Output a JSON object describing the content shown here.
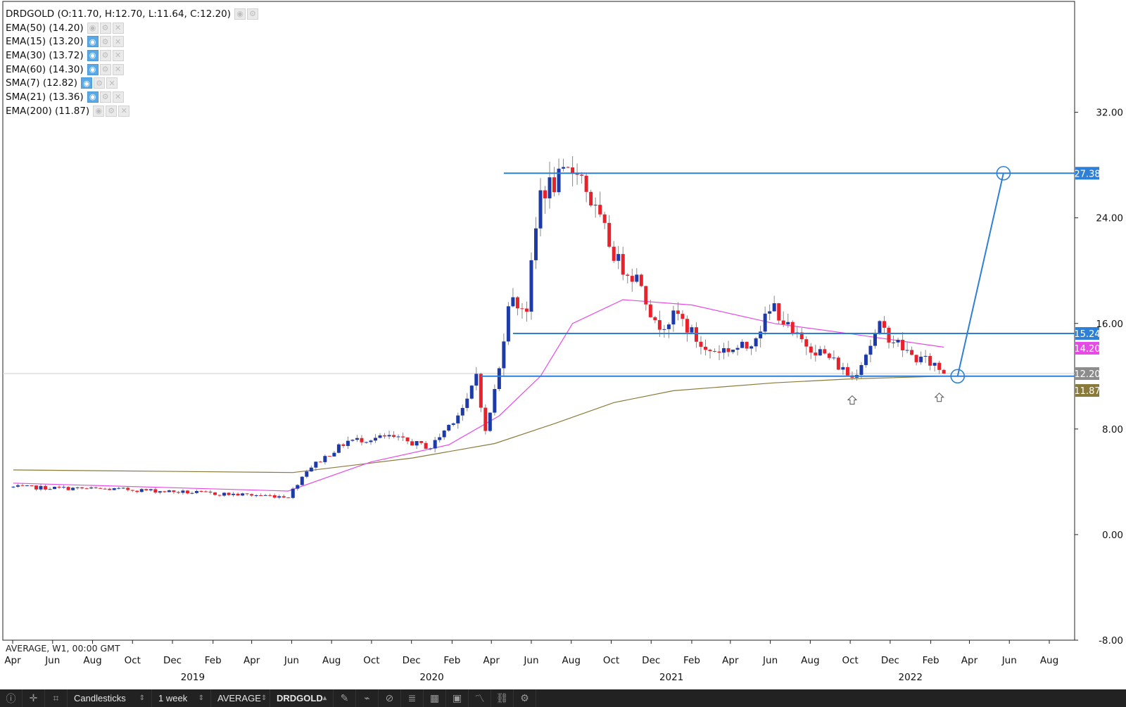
{
  "legend": {
    "ohlc": "DRDGOLD (O:11.70, H:12.70, L:11.64, C:12.20)",
    "indicators": [
      {
        "label": "EMA(50) (14.20)",
        "visible": false,
        "color": "#e64be6"
      },
      {
        "label": "EMA(15) (13.20)",
        "visible": true,
        "color": "#4aa3df"
      },
      {
        "label": "EMA(30) (13.72)",
        "visible": true,
        "color": "#4aa3df"
      },
      {
        "label": "EMA(60) (14.30)",
        "visible": true,
        "color": "#4aa3df"
      },
      {
        "label": "SMA(7) (12.82)",
        "visible": true,
        "color": "#4aa3df"
      },
      {
        "label": "SMA(21) (13.36)",
        "visible": true,
        "color": "#4aa3df"
      },
      {
        "label": "EMA(200) (11.87)",
        "visible": false,
        "color": "#8a7a3a"
      }
    ]
  },
  "footnote": "AVERAGE, W1, 00:00 GMT",
  "toolbar": {
    "chart_type": "Candlesticks",
    "interval": "1 week",
    "price_type": "AVERAGE",
    "symbol": "DRDGOLD",
    "icons": [
      "info-icon",
      "crosshair-icon",
      "crop-icon",
      "pencil-icon",
      "brush-icon",
      "hide-icon",
      "indicators-icon",
      "layout-icon",
      "portfolio-icon",
      "line-chart-icon",
      "link-icon",
      "settings-icon"
    ]
  },
  "chart_data": {
    "type": "candlestick",
    "symbol": "DRDGOLD",
    "interval": "1 week",
    "y_ticks": [
      "32.00",
      "24.00",
      "16.00",
      "8.00",
      "0.00",
      "-8.00"
    ],
    "ylim": [
      -8,
      40.4
    ],
    "x_month_ticks": [
      {
        "label": "Apr",
        "date": "2018-04-01"
      },
      {
        "label": "Jun",
        "date": "2018-06-01"
      },
      {
        "label": "Aug",
        "date": "2018-08-01"
      },
      {
        "label": "Oct",
        "date": "2018-10-01"
      },
      {
        "label": "Dec",
        "date": "2018-12-01"
      },
      {
        "label": "Feb",
        "date": "2019-02-01"
      },
      {
        "label": "Apr",
        "date": "2019-04-01"
      },
      {
        "label": "Jun",
        "date": "2019-06-01"
      },
      {
        "label": "Aug",
        "date": "2019-08-01"
      },
      {
        "label": "Oct",
        "date": "2019-10-01"
      },
      {
        "label": "Dec",
        "date": "2019-12-01"
      },
      {
        "label": "Feb",
        "date": "2020-02-01"
      },
      {
        "label": "Apr",
        "date": "2020-04-01"
      },
      {
        "label": "Jun",
        "date": "2020-06-01"
      },
      {
        "label": "Aug",
        "date": "2020-08-01"
      },
      {
        "label": "Oct",
        "date": "2020-10-01"
      },
      {
        "label": "Dec",
        "date": "2020-12-01"
      },
      {
        "label": "Feb",
        "date": "2021-02-01"
      },
      {
        "label": "Apr",
        "date": "2021-04-01"
      },
      {
        "label": "Jun",
        "date": "2021-06-01"
      },
      {
        "label": "Aug",
        "date": "2021-08-01"
      },
      {
        "label": "Oct",
        "date": "2021-10-01"
      },
      {
        "label": "Dec",
        "date": "2021-12-01"
      },
      {
        "label": "Feb",
        "date": "2022-02-01"
      },
      {
        "label": "Apr",
        "date": "2022-04-01"
      },
      {
        "label": "Jun",
        "date": "2022-06-01"
      },
      {
        "label": "Aug",
        "date": "2022-08-01"
      }
    ],
    "x_year_ticks": [
      {
        "label": "2019",
        "date": "2019-01-01"
      },
      {
        "label": "2020",
        "date": "2020-01-01"
      },
      {
        "label": "2021",
        "date": "2021-01-01"
      },
      {
        "label": "2022",
        "date": "2022-01-01"
      }
    ],
    "price_badges": [
      {
        "value": 27.38,
        "label": "27.38",
        "color": "#2e7fd6"
      },
      {
        "value": 15.24,
        "label": "15.24",
        "color": "#2e7fd6"
      },
      {
        "value": 14.2,
        "label": "14.20",
        "color": "#e64be6"
      },
      {
        "value": 12.2,
        "label": "12.20",
        "color": "#8c8c8c"
      },
      {
        "value": 11.87,
        "label": "11.87",
        "color": "#8a7a3a"
      }
    ],
    "horizontal_lines": [
      {
        "value": 27.38,
        "from": "2020-04-20",
        "color": "#2e7fd6"
      },
      {
        "value": 15.24,
        "from": "2020-05-04",
        "color": "#2e7fd6"
      },
      {
        "value": 12.0,
        "from": "2020-03-16",
        "color": "#2e7fd6"
      }
    ],
    "projection": {
      "start": {
        "date": "2022-03-14",
        "value": 12.0
      },
      "end": {
        "date": "2022-05-23",
        "value": 27.38
      },
      "color": "#2e7fd6"
    },
    "support_arrows": [
      {
        "date": "2021-10-04",
        "value": 10.2
      },
      {
        "date": "2022-02-14",
        "value": 10.4
      }
    ],
    "current_price": 12.2,
    "colors": {
      "up": "#1c3aa8",
      "down": "#e8212b",
      "wick": "#888888",
      "ema50": "#e64be6",
      "ema200": "#8a7a3a",
      "level": "#2e7fd6"
    },
    "key_points": [
      {
        "date": "2018-04-02",
        "value": 3.6
      },
      {
        "date": "2018-10-01",
        "value": 3.4
      },
      {
        "date": "2019-02-04",
        "value": 3.1
      },
      {
        "date": "2019-05-27",
        "value": 2.9
      },
      {
        "date": "2019-06-24",
        "value": 4.9
      },
      {
        "date": "2019-08-26",
        "value": 7.1
      },
      {
        "date": "2019-10-28",
        "value": 7.4
      },
      {
        "date": "2019-12-30",
        "value": 6.6
      },
      {
        "date": "2020-02-24",
        "value": 10.0
      },
      {
        "date": "2020-03-09",
        "value": 12.2
      },
      {
        "date": "2020-03-23",
        "value": 7.7
      },
      {
        "date": "2020-04-13",
        "value": 12.5
      },
      {
        "date": "2020-04-27",
        "value": 17.8
      },
      {
        "date": "2020-05-25",
        "value": 17.2
      },
      {
        "date": "2020-06-15",
        "value": 26.0
      },
      {
        "date": "2020-07-20",
        "value": 27.0
      },
      {
        "date": "2020-08-10",
        "value": 28.0
      },
      {
        "date": "2020-09-07",
        "value": 24.4
      },
      {
        "date": "2020-10-12",
        "value": 20.6
      },
      {
        "date": "2020-11-16",
        "value": 19.2
      },
      {
        "date": "2020-12-07",
        "value": 15.8
      },
      {
        "date": "2021-01-11",
        "value": 16.6
      },
      {
        "date": "2021-02-22",
        "value": 13.9
      },
      {
        "date": "2021-04-26",
        "value": 14.2
      },
      {
        "date": "2021-06-07",
        "value": 17.3
      },
      {
        "date": "2021-07-05",
        "value": 15.1
      },
      {
        "date": "2021-08-30",
        "value": 13.4
      },
      {
        "date": "2021-10-04",
        "value": 11.9
      },
      {
        "date": "2021-11-15",
        "value": 15.7
      },
      {
        "date": "2022-01-03",
        "value": 13.5
      },
      {
        "date": "2022-02-07",
        "value": 12.9
      },
      {
        "date": "2022-02-21",
        "value": 12.2
      }
    ],
    "ema50_points": [
      {
        "date": "2018-04-02",
        "value": 3.9
      },
      {
        "date": "2019-05-27",
        "value": 3.3
      },
      {
        "date": "2019-09-30",
        "value": 5.5
      },
      {
        "date": "2020-01-27",
        "value": 6.8
      },
      {
        "date": "2020-04-13",
        "value": 9.0
      },
      {
        "date": "2020-06-15",
        "value": 12.0
      },
      {
        "date": "2020-08-03",
        "value": 16.0
      },
      {
        "date": "2020-10-19",
        "value": 17.8
      },
      {
        "date": "2021-02-01",
        "value": 17.4
      },
      {
        "date": "2021-06-07",
        "value": 16.0
      },
      {
        "date": "2021-10-04",
        "value": 15.2
      },
      {
        "date": "2022-02-21",
        "value": 14.2
      }
    ],
    "ema200_points": [
      {
        "date": "2018-04-02",
        "value": 4.9
      },
      {
        "date": "2019-06-03",
        "value": 4.7
      },
      {
        "date": "2019-12-02",
        "value": 5.8
      },
      {
        "date": "2020-04-06",
        "value": 6.9
      },
      {
        "date": "2020-07-06",
        "value": 8.4
      },
      {
        "date": "2020-10-05",
        "value": 10.0
      },
      {
        "date": "2021-01-04",
        "value": 10.9
      },
      {
        "date": "2021-06-07",
        "value": 11.5
      },
      {
        "date": "2021-10-04",
        "value": 11.8
      },
      {
        "date": "2022-02-21",
        "value": 12.0
      }
    ]
  }
}
